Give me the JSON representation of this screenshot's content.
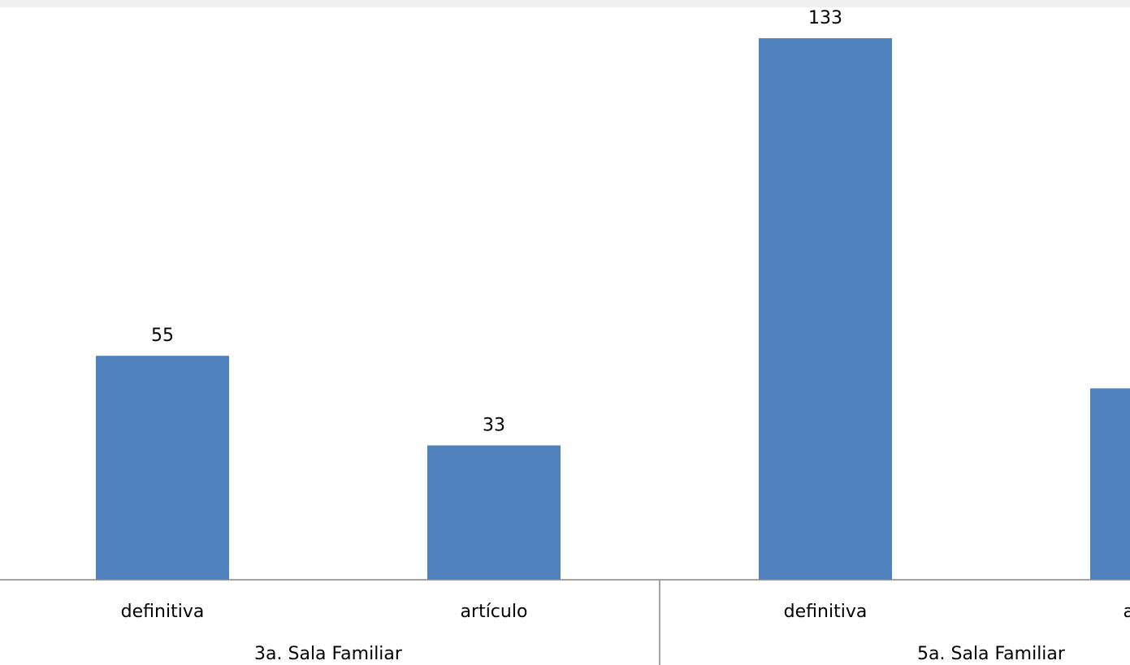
{
  "chart_data": {
    "type": "bar",
    "categories": [
      "definitiva",
      "artículo",
      "definitiva",
      "artículo"
    ],
    "groups": [
      {
        "label": "3a. Sala Familiar",
        "categories": [
          "definitiva",
          "artículo"
        ]
      },
      {
        "label": "5a. Sala Familiar",
        "categories": [
          "definitiva",
          "artículo"
        ]
      }
    ],
    "values": [
      55,
      33,
      133,
      47
    ],
    "ylim": [
      0,
      140
    ],
    "grid": false,
    "legend": "none",
    "bar_color": "#4f81bd",
    "axis_color": "#868686",
    "title": "",
    "xlabel": "",
    "ylabel": ""
  }
}
